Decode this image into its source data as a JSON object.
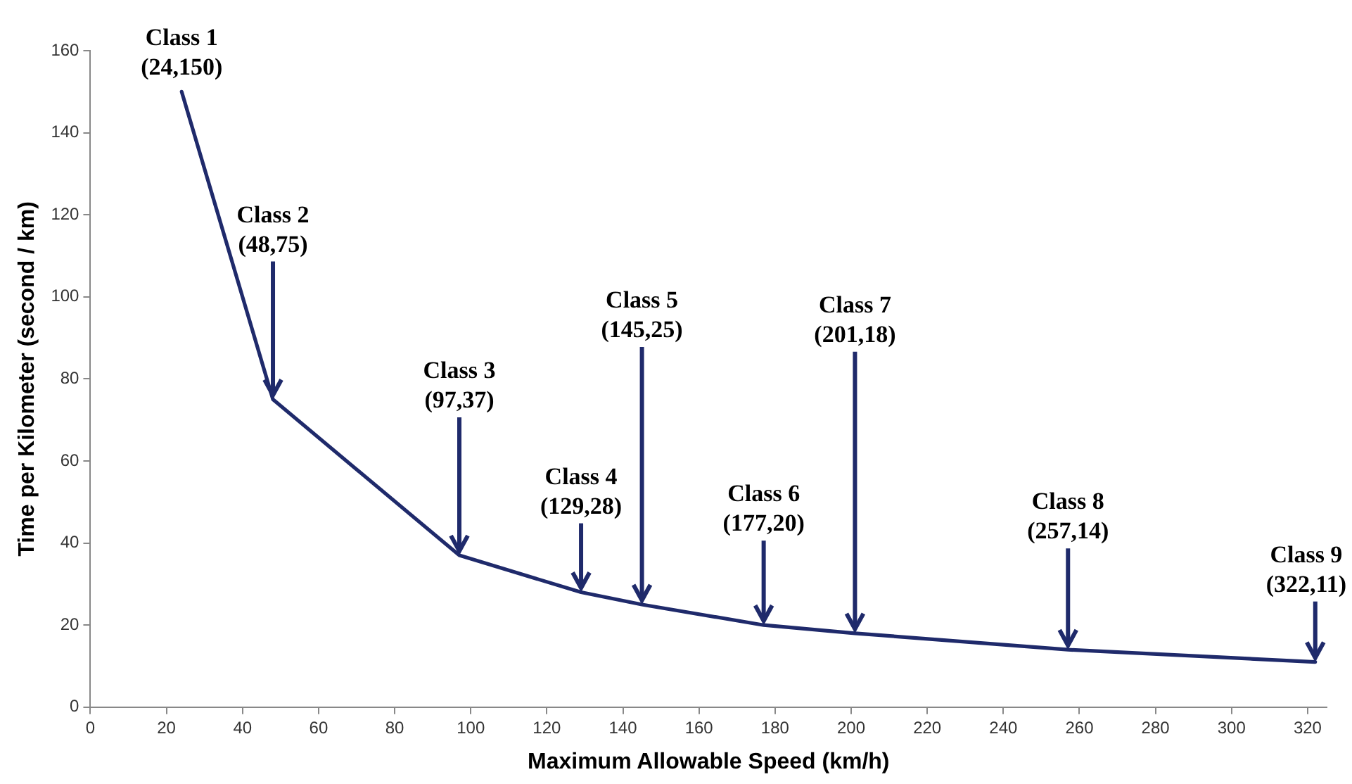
{
  "chart_data": {
    "type": "line",
    "xlabel": "Maximum Allowable Speed (km/h)",
    "ylabel": "Time per Kilometer (second / km)",
    "x": [
      24,
      48,
      97,
      129,
      145,
      177,
      201,
      257,
      322
    ],
    "series": [
      {
        "color": "#1f2a6b",
        "values": [
          150,
          75,
          37,
          28,
          25,
          20,
          18,
          14,
          11
        ]
      }
    ],
    "xlim": [
      0,
      325
    ],
    "xticks": [
      0,
      20,
      40,
      60,
      80,
      100,
      120,
      140,
      160,
      180,
      200,
      220,
      240,
      260,
      280,
      300,
      320
    ],
    "ylim": [
      0,
      160
    ],
    "yticks": [
      0,
      20,
      40,
      60,
      80,
      100,
      120,
      140,
      160
    ],
    "grid": false,
    "legend": false,
    "marker": "none",
    "line_style": "solid",
    "annotations": [
      {
        "text": "Class 1\n(24,150)",
        "x": 24,
        "y": 150
      },
      {
        "text": "Class 2\n(48,75)",
        "x": 48,
        "y": 75
      },
      {
        "text": "Class 3\n(97,37)",
        "x": 97,
        "y": 37
      },
      {
        "text": "Class 4\n(129,28)",
        "x": 129,
        "y": 28
      },
      {
        "text": "Class 5\n(145,25)",
        "x": 145,
        "y": 25
      },
      {
        "text": "Class 6\n(177,20)",
        "x": 177,
        "y": 20
      },
      {
        "text": "Class 7\n(201,18)",
        "x": 201,
        "y": 18
      },
      {
        "text": "Class 8\n(257,14)",
        "x": 257,
        "y": 14
      },
      {
        "text": "Class 9\n(322,11)",
        "x": 322,
        "y": 11
      }
    ]
  }
}
